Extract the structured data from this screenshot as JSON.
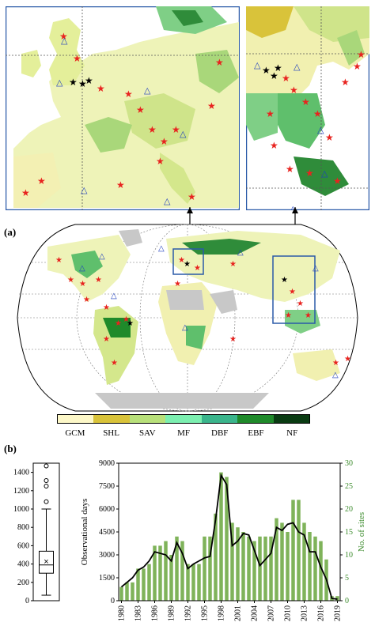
{
  "panels": {
    "a": "(a)",
    "b": "(b)"
  },
  "legend": {
    "items": [
      {
        "label": "GCM",
        "color": "#fdf8c8"
      },
      {
        "label": "SHL",
        "color": "#d9c33a"
      },
      {
        "label": "SAV",
        "color": "#b8e07a"
      },
      {
        "label": "MF",
        "color": "#7cefb0"
      },
      {
        "label": "DBF",
        "color": "#3bb58c"
      },
      {
        "label": "EBF",
        "color": "#1f8a2a"
      },
      {
        "label": "NF",
        "color": "#0a3b12"
      }
    ]
  },
  "marker_colors": {
    "star_red": "#e8231f",
    "star_black": "#000000",
    "triangle_blue": "#1f3fbf"
  },
  "chart_data": [
    {
      "type": "box",
      "ylim": [
        0,
        1500
      ],
      "yticks": [
        0,
        200,
        400,
        600,
        800,
        1000,
        1200,
        1400
      ],
      "min": 60,
      "q1": 300,
      "median": 390,
      "q3": 540,
      "max": 1000,
      "mean": 430,
      "outliers": [
        1080,
        1250,
        1310,
        1470
      ]
    },
    {
      "type": "bar+line",
      "years": [
        1980,
        1981,
        1982,
        1983,
        1984,
        1985,
        1986,
        1987,
        1988,
        1989,
        1990,
        1991,
        1992,
        1993,
        1994,
        1995,
        1996,
        1997,
        1998,
        1999,
        2000,
        2001,
        2002,
        2003,
        2004,
        2005,
        2006,
        2007,
        2008,
        2009,
        2010,
        2011,
        2012,
        2013,
        2014,
        2015,
        2016,
        2017,
        2018,
        2019
      ],
      "xticklabels": [
        "1980",
        "1983",
        "1986",
        "1989",
        "1992",
        "1995",
        "1998",
        "2001",
        "2004",
        "2007",
        "2010",
        "2013",
        "2016",
        "2019"
      ],
      "ylabel": "Observational days",
      "y2label": "No. of sites",
      "ylim": [
        0,
        9000
      ],
      "yticks": [
        0,
        1500,
        3000,
        4500,
        6000,
        7500,
        9000
      ],
      "y2lim": [
        0,
        30
      ],
      "y2ticks": [
        0,
        5,
        10,
        15,
        20,
        25,
        30
      ],
      "sites": [
        3,
        4,
        4,
        7,
        7,
        8,
        12,
        12,
        13,
        10,
        14,
        13,
        8,
        8,
        8,
        14,
        14,
        19,
        28,
        27,
        17,
        16,
        15,
        14,
        13,
        14,
        14,
        14,
        18,
        17,
        15,
        22,
        22,
        17,
        15,
        14,
        13,
        9,
        1,
        1
      ],
      "days": [
        900,
        1200,
        1500,
        2000,
        2200,
        2600,
        3200,
        3100,
        3000,
        2600,
        3800,
        3100,
        2100,
        2400,
        2600,
        2800,
        2900,
        5300,
        8200,
        7600,
        3600,
        3900,
        4400,
        4300,
        3300,
        2300,
        2700,
        3100,
        4800,
        4600,
        5000,
        5100,
        4500,
        4300,
        3200,
        3200,
        2200,
        1400,
        150,
        100
      ]
    }
  ]
}
